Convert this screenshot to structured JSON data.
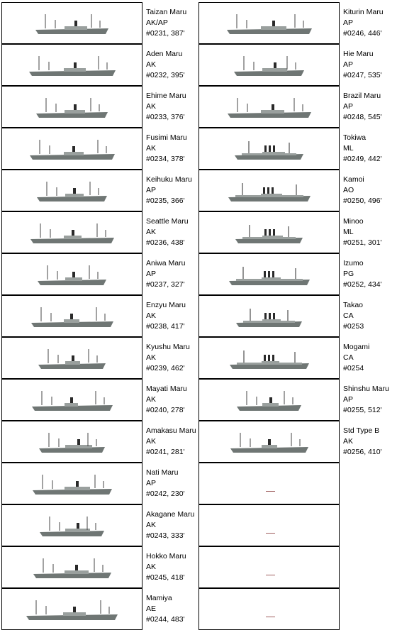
{
  "left_column": [
    {
      "name": "Taizan Maru",
      "type": "AK/AP",
      "number": "#0231, 387'"
    },
    {
      "name": "Aden Maru",
      "type": "AK",
      "number": "#0232, 395'"
    },
    {
      "name": "Ehime Maru",
      "type": "AK",
      "number": "#0233, 376'"
    },
    {
      "name": "Fusimi Maru",
      "type": "AK",
      "number": "#0234, 378'"
    },
    {
      "name": "Keihuku Maru",
      "type": "AP",
      "number": "#0235, 366'"
    },
    {
      "name": "Seattle Maru",
      "type": "AK",
      "number": "#0236, 438'"
    },
    {
      "name": "Aniwa Maru",
      "type": "AP",
      "number": "#0237, 327'"
    },
    {
      "name": "Enzyu Maru",
      "type": "AK",
      "number": "#0238, 417'"
    },
    {
      "name": "Kyushu Maru",
      "type": "AK",
      "number": "#0239, 462'"
    },
    {
      "name": "Mayati Maru",
      "type": "AK",
      "number": "#0240, 278'"
    },
    {
      "name": "Amakasu Maru",
      "type": "AK",
      "number": "#0241, 281'"
    },
    {
      "name": "Nati Maru",
      "type": "AP",
      "number": "#0242, 230'"
    },
    {
      "name": "Akagane Maru",
      "type": "AK",
      "number": "#0243, 333'"
    },
    {
      "name": "Hokko Maru",
      "type": "AK",
      "number": "#0245, 418'"
    },
    {
      "name": "Mamiya",
      "type": "AE",
      "number": "#0244, 483'"
    }
  ],
  "right_column": [
    {
      "name": "Kiturin Maru",
      "type": "AP",
      "number": "#0246, 446'"
    },
    {
      "name": "Hie Maru",
      "type": "AP",
      "number": "#0247, 535'"
    },
    {
      "name": "Brazil Maru",
      "type": "AP",
      "number": "#0248, 545'"
    },
    {
      "name": "Tokiwa",
      "type": "ML",
      "number": "#0249, 442'"
    },
    {
      "name": "Kamoi",
      "type": "AO",
      "number": "#0250, 496'"
    },
    {
      "name": "Minoo",
      "type": "ML",
      "number": "#0251, 301'"
    },
    {
      "name": "Izumo",
      "type": "PG",
      "number": "#0252, 434'"
    },
    {
      "name": "Takao",
      "type": "CA",
      "number": "#0253"
    },
    {
      "name": "Mogami",
      "type": "CA",
      "number": "#0254"
    },
    {
      "name": "Shinshu Maru",
      "type": "AP",
      "number": "#0255, 512'"
    },
    {
      "name": "Std Type B",
      "type": "AK",
      "number": "#0256, 410'"
    }
  ],
  "empty_slots": 4,
  "colors": {
    "hull": "#6f7674",
    "superstructure": "#9aa09e",
    "funnel": "#2a2a2a",
    "placeholder": "#a06060"
  }
}
